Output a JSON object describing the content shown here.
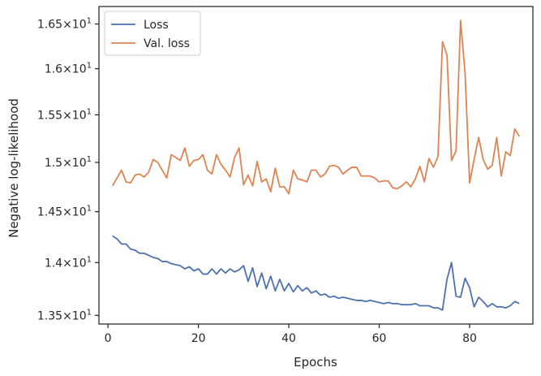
{
  "chart_data": {
    "type": "line",
    "xlabel": "Epochs",
    "ylabel": "Negative log-likelihood",
    "xlim": [
      -2,
      94
    ],
    "ylim": [
      13.42,
      16.7
    ],
    "yscale": "log",
    "grid": false,
    "legend_position": "top-left",
    "x_ticks": [
      0,
      20,
      40,
      60,
      80
    ],
    "y_ticks": [
      {
        "value": 13.5,
        "mantissa": "1.35",
        "base": "10",
        "exponent": "1"
      },
      {
        "value": 14.0,
        "mantissa": "1.4",
        "base": "10",
        "exponent": "1"
      },
      {
        "value": 14.5,
        "mantissa": "1.45",
        "base": "10",
        "exponent": "1"
      },
      {
        "value": 15.0,
        "mantissa": "1.5",
        "base": "10",
        "exponent": "1"
      },
      {
        "value": 15.5,
        "mantissa": "1.55",
        "base": "10",
        "exponent": "1"
      },
      {
        "value": 16.0,
        "mantissa": "1.6",
        "base": "10",
        "exponent": "1"
      },
      {
        "value": 16.5,
        "mantissa": "1.65",
        "base": "10",
        "exponent": "1"
      }
    ],
    "series": [
      {
        "name": "Loss",
        "color": "#4c72b0",
        "x": [
          1,
          2,
          3,
          4,
          5,
          6,
          7,
          8,
          9,
          10,
          11,
          12,
          13,
          14,
          15,
          16,
          17,
          18,
          19,
          20,
          21,
          22,
          23,
          24,
          25,
          26,
          27,
          28,
          29,
          30,
          31,
          32,
          33,
          34,
          35,
          36,
          37,
          38,
          39,
          40,
          41,
          42,
          43,
          44,
          45,
          46,
          47,
          48,
          49,
          50,
          51,
          52,
          53,
          54,
          55,
          56,
          57,
          58,
          59,
          60,
          61,
          62,
          63,
          64,
          65,
          66,
          67,
          68,
          69,
          70,
          71,
          72,
          73,
          74,
          75,
          76,
          77,
          78,
          79,
          80,
          81,
          82,
          83,
          84,
          85,
          86,
          87,
          88,
          89,
          90,
          91
        ],
        "values": [
          14.26,
          14.23,
          14.18,
          14.18,
          14.13,
          14.12,
          14.09,
          14.09,
          14.07,
          14.05,
          14.04,
          14.01,
          14.01,
          13.99,
          13.98,
          13.97,
          13.94,
          13.96,
          13.92,
          13.94,
          13.89,
          13.89,
          13.94,
          13.89,
          13.94,
          13.9,
          13.94,
          13.91,
          13.93,
          13.97,
          13.82,
          13.95,
          13.77,
          13.9,
          13.75,
          13.87,
          13.73,
          13.84,
          13.73,
          13.8,
          13.72,
          13.78,
          13.73,
          13.76,
          13.71,
          13.73,
          13.69,
          13.7,
          13.67,
          13.68,
          13.66,
          13.67,
          13.66,
          13.65,
          13.64,
          13.64,
          13.63,
          13.64,
          13.63,
          13.62,
          13.61,
          13.62,
          13.61,
          13.61,
          13.6,
          13.6,
          13.6,
          13.61,
          13.59,
          13.59,
          13.59,
          13.57,
          13.57,
          13.55,
          13.84,
          14.0,
          13.68,
          13.67,
          13.85,
          13.76,
          13.58,
          13.67,
          13.63,
          13.58,
          13.61,
          13.58,
          13.58,
          13.57,
          13.59,
          13.63,
          13.61
        ]
      },
      {
        "name": "Val. loss",
        "color": "#dd8452",
        "x": [
          1,
          2,
          3,
          4,
          5,
          6,
          7,
          8,
          9,
          10,
          11,
          12,
          13,
          14,
          15,
          16,
          17,
          18,
          19,
          20,
          21,
          22,
          23,
          24,
          25,
          26,
          27,
          28,
          29,
          30,
          31,
          32,
          33,
          34,
          35,
          36,
          37,
          38,
          39,
          40,
          41,
          42,
          43,
          44,
          45,
          46,
          47,
          48,
          49,
          50,
          51,
          52,
          53,
          54,
          55,
          56,
          57,
          58,
          59,
          60,
          61,
          62,
          63,
          64,
          65,
          66,
          67,
          68,
          69,
          70,
          71,
          72,
          73,
          74,
          75,
          76,
          77,
          78,
          79,
          80,
          81,
          82,
          83,
          84,
          85,
          86,
          87,
          88,
          89,
          90,
          91
        ],
        "values": [
          14.76,
          14.84,
          14.92,
          14.8,
          14.79,
          14.87,
          14.88,
          14.85,
          14.9,
          15.03,
          15.0,
          14.92,
          14.84,
          15.08,
          15.05,
          15.02,
          15.15,
          14.96,
          15.02,
          15.03,
          15.08,
          14.92,
          14.88,
          15.08,
          14.98,
          14.92,
          14.85,
          15.05,
          15.15,
          14.77,
          14.87,
          14.76,
          15.01,
          14.8,
          14.83,
          14.7,
          14.94,
          14.75,
          14.75,
          14.68,
          14.92,
          14.83,
          14.82,
          14.8,
          14.92,
          14.92,
          14.85,
          14.88,
          14.96,
          14.97,
          14.95,
          14.88,
          14.92,
          14.95,
          14.95,
          14.86,
          14.86,
          14.86,
          14.84,
          14.8,
          14.81,
          14.81,
          14.74,
          14.73,
          14.76,
          14.8,
          14.75,
          14.83,
          14.96,
          14.8,
          15.04,
          14.95,
          15.06,
          16.3,
          16.15,
          15.02,
          15.12,
          16.54,
          15.95,
          14.79,
          15.03,
          15.26,
          15.03,
          14.93,
          14.97,
          15.26,
          14.86,
          15.11,
          15.07,
          15.35,
          15.27
        ]
      }
    ]
  }
}
